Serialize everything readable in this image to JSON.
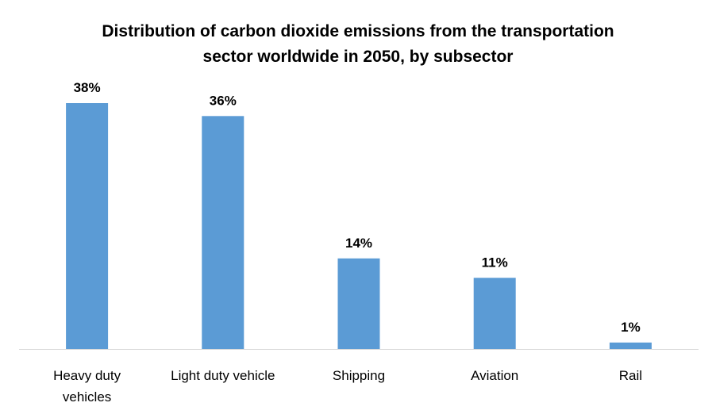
{
  "chart_data": {
    "type": "bar",
    "title": "Distribution of carbon dioxide emissions from the transportation sector worldwide in 2050, by subsector",
    "categories": [
      "Heavy duty vehicles",
      "Light duty vehicle",
      "Shipping",
      "Aviation",
      "Rail"
    ],
    "values": [
      38,
      36,
      14,
      11,
      1
    ],
    "value_labels": [
      "38%",
      "36%",
      "14%",
      "11%",
      "1%"
    ],
    "color": "#5b9bd5"
  }
}
